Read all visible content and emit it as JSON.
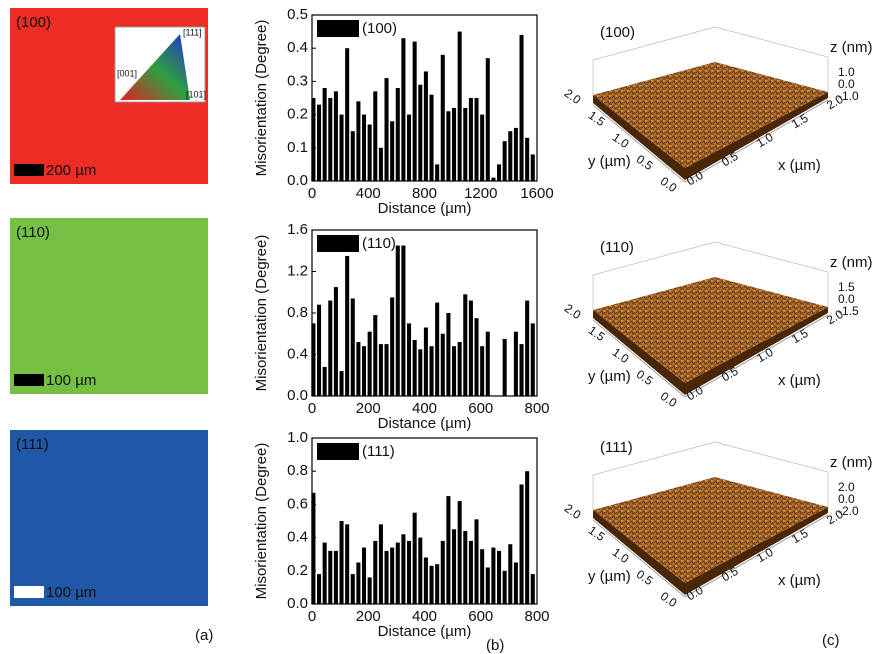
{
  "panel_a": [
    {
      "label": "(100)",
      "color": "#ee2b25",
      "scale_bar": "200 µm",
      "bar_color": "#000000"
    },
    {
      "label": "(110)",
      "color": "#75c043",
      "scale_bar": "100 µm",
      "bar_color": "#000000"
    },
    {
      "label": "(111)",
      "color": "#2058a8",
      "scale_bar": "100 µm",
      "bar_color": "#ffffff"
    }
  ],
  "inset": {
    "labels": [
      "[111]",
      "[001]",
      "[101]"
    ]
  },
  "chart_data": [
    {
      "type": "bar",
      "y_label": "Misorientation (Degree)",
      "x_label": "Distance (µm)",
      "xlim": [
        0,
        1600
      ],
      "xticks": [
        0,
        400,
        800,
        1200,
        1600
      ],
      "ylim": [
        0,
        0.5
      ],
      "yticks": [
        {
          "value": 0,
          "label": "0.0"
        },
        0.1,
        0.2,
        0.3,
        0.4,
        0.5
      ],
      "x": [
        10,
        50,
        90,
        130,
        170,
        210,
        250,
        290,
        330,
        370,
        410,
        450,
        490,
        530,
        570,
        610,
        650,
        690,
        730,
        770,
        810,
        850,
        890,
        930,
        970,
        1010,
        1050,
        1090,
        1130,
        1170,
        1210,
        1250,
        1290,
        1330,
        1370,
        1410,
        1450,
        1490,
        1530,
        1570
      ],
      "series": [
        {
          "name": "(100)",
          "color": "#000000",
          "values": [
            0.25,
            0.23,
            0.28,
            0.25,
            0.27,
            0.2,
            0.4,
            0.15,
            0.24,
            0.2,
            0.17,
            0.27,
            0.1,
            0.31,
            0.18,
            0.28,
            0.43,
            0.2,
            0.42,
            0.29,
            0.33,
            0.26,
            0.05,
            0.38,
            0.21,
            0.22,
            0.45,
            0.22,
            0.25,
            0.25,
            0.2,
            0.37,
            0.01,
            0.05,
            0.12,
            0.15,
            0.16,
            0.44,
            0.13,
            0.08
          ]
        }
      ]
    },
    {
      "type": "bar",
      "y_label": "Misorientation (Degree)",
      "x_label": "Distance (µm)",
      "xlim": [
        0,
        800
      ],
      "xticks": [
        0,
        200,
        400,
        600,
        800
      ],
      "ylim": [
        0,
        1.6
      ],
      "yticks": [
        {
          "value": 0,
          "label": "0.0"
        },
        0.4,
        0.8,
        1.2,
        1.6
      ],
      "x": [
        5,
        25,
        45,
        65,
        85,
        105,
        125,
        145,
        165,
        185,
        205,
        225,
        245,
        265,
        285,
        305,
        325,
        345,
        365,
        385,
        405,
        425,
        445,
        465,
        485,
        505,
        525,
        545,
        565,
        585,
        605,
        625,
        645,
        665,
        685,
        705,
        725,
        745,
        765,
        785
      ],
      "series": [
        {
          "name": "(110)",
          "color": "#000000",
          "values": [
            0.7,
            0.88,
            0.28,
            0.92,
            1.05,
            0.24,
            1.35,
            0.94,
            0.52,
            0.48,
            0.62,
            0.78,
            0.5,
            0.5,
            0.95,
            1.45,
            1.45,
            0.7,
            0.54,
            0.45,
            0.66,
            0.48,
            0.9,
            0.6,
            0.8,
            0.48,
            0.52,
            0.98,
            0.92,
            0.75,
            0.48,
            0.62,
            0,
            0,
            0.55,
            0,
            0.62,
            0.5,
            0.92,
            0.7
          ]
        }
      ]
    },
    {
      "type": "bar",
      "y_label": "Misorientation (Degree)",
      "x_label": "Distance (µm)",
      "xlim": [
        0,
        800
      ],
      "xticks": [
        0,
        200,
        400,
        600,
        800
      ],
      "ylim": [
        0,
        1.0
      ],
      "yticks": [
        {
          "value": 0,
          "label": "0.0"
        },
        0.2,
        0.4,
        0.6,
        0.8,
        {
          "value": 1,
          "label": "1.0"
        }
      ],
      "x": [
        5,
        25,
        45,
        65,
        85,
        105,
        125,
        145,
        165,
        185,
        205,
        225,
        245,
        265,
        285,
        305,
        325,
        345,
        365,
        385,
        405,
        425,
        445,
        465,
        485,
        505,
        525,
        545,
        565,
        585,
        605,
        625,
        645,
        665,
        685,
        705,
        725,
        745,
        765,
        785
      ],
      "series": [
        {
          "name": "(111)",
          "color": "#000000",
          "values": [
            0.67,
            0.18,
            0.37,
            0.32,
            0.32,
            0.5,
            0.48,
            0.18,
            0.25,
            0.34,
            0.16,
            0.38,
            0.48,
            0.32,
            0.34,
            0.37,
            0.42,
            0.38,
            0.55,
            0.4,
            0.28,
            0.23,
            0.24,
            0.38,
            0.65,
            0.45,
            0.62,
            0.44,
            0.38,
            0.51,
            0.33,
            0.22,
            0.34,
            0.32,
            0.2,
            0.36,
            0.25,
            0.72,
            0.8,
            0.18
          ]
        }
      ]
    }
  ],
  "panel_c": [
    {
      "label": "(100)",
      "z_label": "z (nm)",
      "z_ticks": [
        "1.0",
        "0.0",
        "-1.0"
      ],
      "x_label": "x (µm)",
      "y_label": "y (µm)",
      "xy_ticks": [
        "0.0",
        "0.5",
        "1.0",
        "1.5",
        "2.0"
      ]
    },
    {
      "label": "(110)",
      "z_label": "z (nm)",
      "z_ticks": [
        "1.5",
        "0.0",
        "-1.5"
      ],
      "x_label": "x (µm)",
      "y_label": "y (µm)",
      "xy_ticks": [
        "0.0",
        "0.5",
        "1.0",
        "1.5",
        "2.0"
      ]
    },
    {
      "label": "(111)",
      "z_label": "z (nm)",
      "z_ticks": [
        "2.0",
        "0.0",
        "-2.0"
      ],
      "x_label": "x (µm)",
      "y_label": "y (µm)",
      "xy_ticks": [
        "0.0",
        "0.5",
        "1.0",
        "1.5",
        "2.0"
      ]
    }
  ],
  "panel_letters": [
    "(a)",
    "(b)",
    "(c)"
  ]
}
